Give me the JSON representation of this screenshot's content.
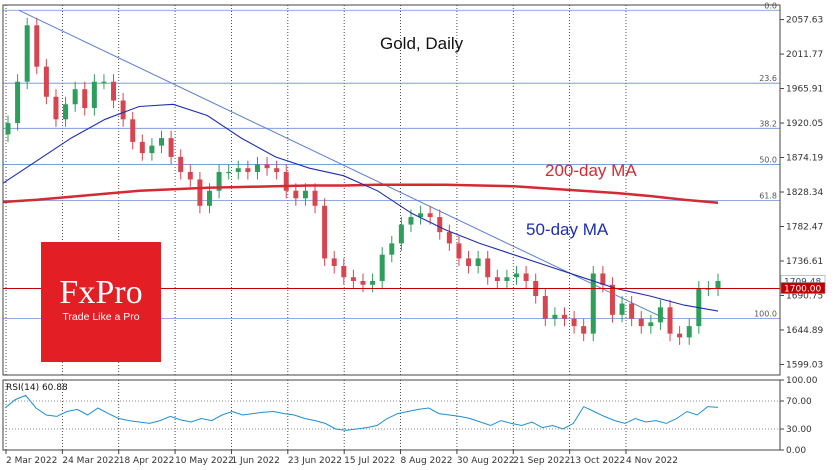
{
  "chart_data": [
    {
      "type": "candlestick",
      "title": "Gold, Daily",
      "colors": {
        "up": "#2e9e5b",
        "down": "#d64550",
        "ma200": "#d42a34",
        "ma50": "#1e2eb0",
        "trendline": "#5a7fd0",
        "fib": "#6a8fd8",
        "price_line": "#c00000"
      },
      "y_ticks": [
        2057.63,
        2011.77,
        1965.91,
        1920.05,
        1874.19,
        1828.34,
        1782.47,
        1736.61,
        1690.75,
        1644.89,
        1599.03
      ],
      "ylim": [
        1585,
        2077
      ],
      "x_ticks": [
        "2 Mar 2022",
        "24 Mar 2022",
        "18 Apr 2022",
        "10 May 2022",
        "1 Jun 2022",
        "23 Jun 2022",
        "15 Jul 2022",
        "8 Aug 2022",
        "30 Aug 2022",
        "21 Sep 2022",
        "13 Oct 2022",
        "4 Nov 2022"
      ],
      "fib_levels": [
        {
          "label": "0.0",
          "value": 2070
        },
        {
          "label": "23.6",
          "value": 1973
        },
        {
          "label": "38.2",
          "value": 1913
        },
        {
          "label": "50.0",
          "value": 1865
        },
        {
          "label": "61.8",
          "value": 1817
        },
        {
          "label": "100.0",
          "value": 1660
        }
      ],
      "price_labels": [
        {
          "text": "1709.48",
          "value": 1709.48,
          "bg": "#ffffff",
          "fg": "#1a5276"
        },
        {
          "text": "1700.00",
          "value": 1700.0,
          "bg": "#c00000",
          "fg": "#ffffff"
        }
      ],
      "annotations": [
        {
          "text": "200-day MA",
          "color": "#d42a34"
        },
        {
          "text": "50-day MA",
          "color": "#1e2eb0"
        }
      ],
      "ma200": [
        1815,
        1818,
        1822,
        1826,
        1830,
        1832,
        1834,
        1835,
        1836,
        1837,
        1837,
        1838,
        1838,
        1838,
        1837,
        1836,
        1833,
        1830,
        1827,
        1823,
        1818,
        1814
      ],
      "ma50": [
        1840,
        1870,
        1900,
        1925,
        1942,
        1945,
        1930,
        1900,
        1875,
        1860,
        1850,
        1830,
        1800,
        1778,
        1760,
        1745,
        1730,
        1715,
        1700,
        1690,
        1678,
        1670
      ],
      "trendline": {
        "from": 2070,
        "to": 1660
      },
      "closes": [
        1920,
        1975,
        2050,
        1995,
        1955,
        1925,
        1945,
        1965,
        1940,
        1975,
        1975,
        1950,
        1925,
        1895,
        1880,
        1890,
        1900,
        1875,
        1855,
        1845,
        1810,
        1830,
        1855,
        1855,
        1860,
        1855,
        1865,
        1860,
        1855,
        1830,
        1820,
        1830,
        1810,
        1740,
        1730,
        1715,
        1710,
        1705,
        1710,
        1745,
        1760,
        1785,
        1795,
        1800,
        1795,
        1775,
        1760,
        1740,
        1730,
        1740,
        1715,
        1710,
        1715,
        1720,
        1710,
        1690,
        1660,
        1665,
        1660,
        1650,
        1640,
        1720,
        1705,
        1665,
        1680,
        1660,
        1650,
        1655,
        1675,
        1640,
        1635,
        1650,
        1700,
        1700,
        1710
      ]
    },
    {
      "type": "line",
      "title": "RSI(14) 60.88",
      "y_ticks": [
        100,
        70,
        30,
        0
      ],
      "y_tick_labels": [
        "100.00",
        "70.00",
        "30.00",
        "0.00"
      ],
      "ylim": [
        0,
        100
      ],
      "values": [
        60,
        72,
        78,
        60,
        50,
        48,
        55,
        58,
        50,
        60,
        52,
        45,
        42,
        40,
        38,
        42,
        48,
        43,
        40,
        45,
        42,
        50,
        55,
        50,
        52,
        54,
        55,
        52,
        50,
        45,
        42,
        38,
        30,
        28,
        30,
        32,
        35,
        45,
        52,
        55,
        58,
        60,
        52,
        50,
        48,
        45,
        40,
        35,
        42,
        38,
        35,
        40,
        32,
        35,
        30,
        38,
        62,
        55,
        48,
        42,
        38,
        45,
        40,
        42,
        38,
        45,
        55,
        50,
        62,
        60.88
      ]
    }
  ],
  "logo": {
    "name": "FxPro",
    "tagline": "Trade Like a Pro"
  }
}
